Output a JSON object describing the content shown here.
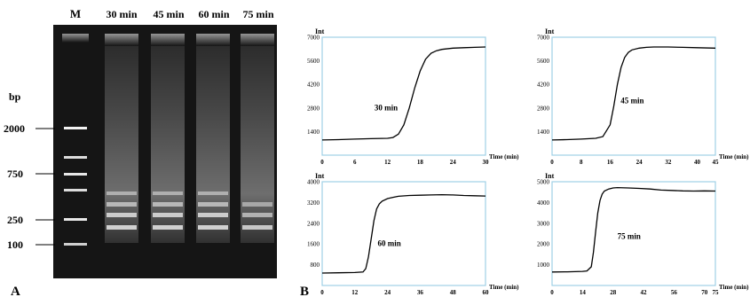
{
  "panel_a": {
    "label": "A",
    "marker_lane_label": "M",
    "lane_labels": [
      "30 min",
      "45 min",
      "60 min",
      "75 min"
    ],
    "bp_unit": "bp",
    "ladder_labels": [
      "2000",
      "750",
      "250",
      "100"
    ]
  },
  "panel_b": {
    "label": "B"
  },
  "chart_data": [
    {
      "type": "line",
      "title": "",
      "annotation": "30 min",
      "ylabel": "Int",
      "xlabel": "Time (min)",
      "xlim": [
        0,
        30
      ],
      "ylim": [
        0,
        7000
      ],
      "xticks": [
        "0",
        "6",
        "12",
        "18",
        "24",
        "30"
      ],
      "yticks": [
        "1400",
        "2800",
        "4200",
        "5600",
        "7000"
      ],
      "grid": false,
      "series": [
        {
          "x": [
            0,
            3,
            6,
            9,
            12,
            13,
            14,
            15,
            16,
            17,
            18,
            19,
            20,
            21,
            22,
            24,
            26,
            28,
            30
          ],
          "y": [
            900,
            920,
            950,
            980,
            1000,
            1050,
            1250,
            1800,
            2800,
            4000,
            5000,
            5700,
            6050,
            6200,
            6280,
            6350,
            6380,
            6400,
            6420
          ]
        }
      ]
    },
    {
      "type": "line",
      "title": "",
      "annotation": "45 min",
      "ylabel": "Int",
      "xlabel": "Time (min)",
      "xlim": [
        0,
        45
      ],
      "ylim": [
        0,
        7000
      ],
      "xticks": [
        "0",
        "8",
        "16",
        "24",
        "32",
        "40",
        "45"
      ],
      "yticks": [
        "1400",
        "2800",
        "4200",
        "5600",
        "7000"
      ],
      "grid": false,
      "series": [
        {
          "x": [
            0,
            4,
            8,
            12,
            14,
            16,
            17,
            18,
            19,
            20,
            21,
            22,
            24,
            26,
            28,
            32,
            36,
            40,
            45
          ],
          "y": [
            900,
            920,
            950,
            1000,
            1100,
            1800,
            2900,
            4200,
            5200,
            5800,
            6100,
            6250,
            6350,
            6400,
            6420,
            6420,
            6400,
            6380,
            6350
          ]
        }
      ]
    },
    {
      "type": "line",
      "title": "",
      "annotation": "60 min",
      "ylabel": "Int",
      "xlabel": "Time (min)",
      "xlim": [
        0,
        60
      ],
      "ylim": [
        0,
        4000
      ],
      "xticks": [
        "0",
        "12",
        "24",
        "36",
        "48",
        "60"
      ],
      "yticks": [
        "800",
        "1600",
        "2400",
        "3200",
        "4000"
      ],
      "grid": false,
      "series": [
        {
          "x": [
            0,
            6,
            12,
            15,
            16,
            17,
            18,
            19,
            20,
            21,
            22,
            24,
            26,
            28,
            32,
            36,
            40,
            44,
            48,
            52,
            56,
            60
          ],
          "y": [
            480,
            490,
            500,
            520,
            650,
            1100,
            1800,
            2500,
            2950,
            3150,
            3250,
            3350,
            3400,
            3440,
            3470,
            3480,
            3490,
            3500,
            3490,
            3470,
            3460,
            3450
          ]
        }
      ]
    },
    {
      "type": "line",
      "title": "",
      "annotation": "75 min",
      "ylabel": "Int",
      "xlabel": "Time (min)",
      "xlim": [
        0,
        75
      ],
      "ylim": [
        0,
        5000
      ],
      "xticks": [
        "0",
        "14",
        "28",
        "42",
        "56",
        "70",
        "75"
      ],
      "yticks": [
        "1000",
        "2000",
        "3000",
        "4000",
        "5000"
      ],
      "grid": false,
      "series": [
        {
          "x": [
            0,
            7,
            14,
            16,
            18,
            19,
            20,
            21,
            22,
            23,
            24,
            26,
            28,
            30,
            35,
            40,
            45,
            50,
            55,
            60,
            65,
            70,
            75
          ],
          "y": [
            650,
            660,
            680,
            700,
            900,
            1600,
            2600,
            3500,
            4100,
            4400,
            4550,
            4650,
            4700,
            4720,
            4700,
            4680,
            4650,
            4600,
            4580,
            4560,
            4550,
            4560,
            4550
          ]
        }
      ]
    }
  ]
}
